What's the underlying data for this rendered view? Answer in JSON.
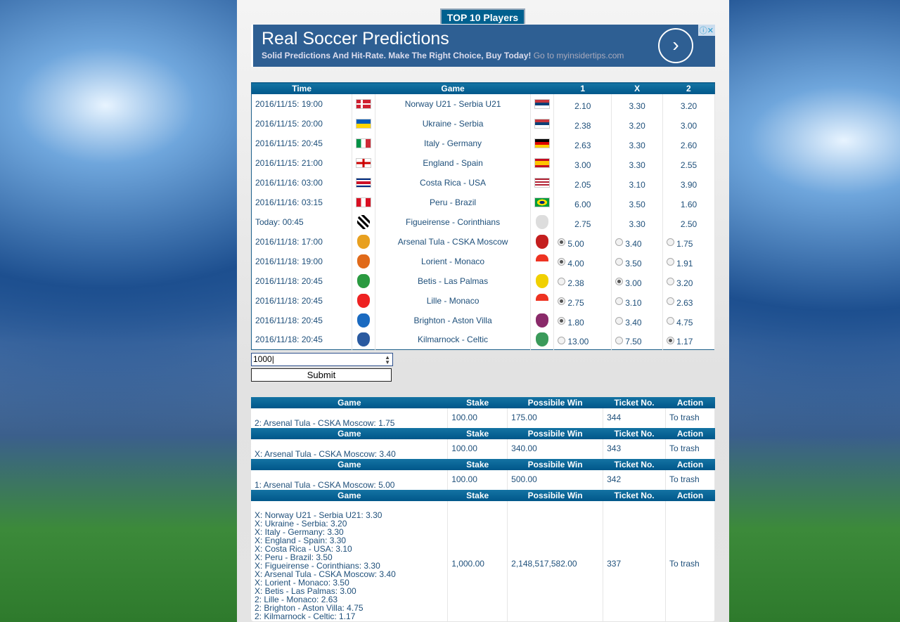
{
  "top_button": "TOP 10 Players",
  "ad": {
    "title": "Real Soccer Predictions",
    "subtitle": "Solid Predictions And Hit-Rate. Make The Right Choice, Buy Today!",
    "link": "Go to myinsidertips.com",
    "info_icon": "ⓘ",
    "close_icon": "✕",
    "arrow": "›"
  },
  "odds_table": {
    "headers": [
      "Time",
      "",
      "Game",
      "",
      "1",
      "X",
      "2"
    ],
    "rows": [
      {
        "time": "2016/11/15: 19:00",
        "game": "Norway U21 - Serbia U21",
        "color": "red",
        "o1": "2.10",
        "ox": "3.30",
        "o2": "3.20",
        "f1": "norway-flag",
        "f2": "serbia-flag"
      },
      {
        "time": "2016/11/15: 20:00",
        "game": "Ukraine - Serbia",
        "color": "red",
        "o1": "2.38",
        "ox": "3.20",
        "o2": "3.00",
        "f1": "ukraine-flag",
        "f2": "serbia-flag"
      },
      {
        "time": "2016/11/15: 20:45",
        "game": "Italy - Germany",
        "color": "red",
        "o1": "2.63",
        "ox": "3.30",
        "o2": "2.60",
        "f1": "italy-flag",
        "f2": "germany-flag"
      },
      {
        "time": "2016/11/15: 21:00",
        "game": "England - Spain",
        "color": "red",
        "o1": "3.00",
        "ox": "3.30",
        "o2": "2.55",
        "f1": "england-flag",
        "f2": "spain-flag"
      },
      {
        "time": "2016/11/16: 03:00",
        "game": "Costa Rica - USA",
        "color": "red",
        "o1": "2.05",
        "ox": "3.10",
        "o2": "3.90",
        "f1": "costa-rica-flag",
        "f2": "usa-flag"
      },
      {
        "time": "2016/11/16: 03:15",
        "game": "Peru - Brazil",
        "color": "red",
        "o1": "6.00",
        "ox": "3.50",
        "o2": "1.60",
        "f1": "peru-flag",
        "f2": "brazil-flag"
      },
      {
        "time": "Today: 00:45",
        "game": "Figueirense - Corinthians",
        "color": "red",
        "o1": "2.75",
        "ox": "3.30",
        "o2": "2.50",
        "f1": "figueirense-badge",
        "f2": "corinthians-badge"
      },
      {
        "time": "2016/11/18: 17:00",
        "game": "Arsenal Tula - CSKA Moscow",
        "color": "green",
        "o1": "5.00",
        "ox": "3.40",
        "o2": "1.75",
        "sel": "1",
        "f1": "arsenal-tula-badge",
        "f2": "cska-badge"
      },
      {
        "time": "2016/11/18: 19:00",
        "game": "Lorient - Monaco",
        "color": "green",
        "o1": "4.00",
        "ox": "3.50",
        "o2": "1.91",
        "sel": "1",
        "f1": "lorient-badge",
        "f2": "monaco-badge"
      },
      {
        "time": "2016/11/18: 20:45",
        "game": "Betis - Las Palmas",
        "color": "green",
        "o1": "2.38",
        "ox": "3.00",
        "o2": "3.20",
        "sel": "X",
        "f1": "betis-badge",
        "f2": "las-palmas-badge"
      },
      {
        "time": "2016/11/18: 20:45",
        "game": "Lille - Monaco",
        "color": "green",
        "o1": "2.75",
        "ox": "3.10",
        "o2": "2.63",
        "sel": "1",
        "f1": "lille-badge",
        "f2": "monaco-badge"
      },
      {
        "time": "2016/11/18: 20:45",
        "game": "Brighton - Aston Villa",
        "color": "green",
        "o1": "1.80",
        "ox": "3.40",
        "o2": "4.75",
        "sel": "1",
        "f1": "brighton-badge",
        "f2": "aston-villa-badge"
      },
      {
        "time": "2016/11/18: 20:45",
        "game": "Kilmarnock - Celtic",
        "color": "green",
        "o1": "13.00",
        "ox": "7.50",
        "o2": "1.17",
        "sel": "2",
        "f1": "kilmarnock-badge",
        "f2": "celtic-badge"
      }
    ]
  },
  "stake_input": "1000",
  "submit_label": "Submit",
  "tickets": {
    "headers": [
      "Game",
      "Stake",
      "Possibile Win",
      "Ticket No.",
      "Action"
    ],
    "items": [
      {
        "games": [
          "2: Arsenal Tula - CSKA Moscow: 1.75"
        ],
        "stake": "100.00",
        "win": "175.00",
        "no": "344",
        "action": "To trash"
      },
      {
        "games": [
          "X: Arsenal Tula - CSKA Moscow: 3.40"
        ],
        "stake": "100.00",
        "win": "340.00",
        "no": "343",
        "action": "To trash"
      },
      {
        "games": [
          "1: Arsenal Tula - CSKA Moscow: 5.00"
        ],
        "stake": "100.00",
        "win": "500.00",
        "no": "342",
        "action": "To trash"
      },
      {
        "games": [
          "X: Norway U21 - Serbia U21: 3.30",
          "X: Ukraine - Serbia: 3.20",
          "X: Italy - Germany: 3.30",
          "X: England - Spain: 3.30",
          "X: Costa Rica - USA: 3.10",
          "X: Peru - Brazil: 3.50",
          "X: Figueirense - Corinthians: 3.30",
          "X: Arsenal Tula - CSKA Moscow: 3.40",
          "X: Lorient - Monaco: 3.50",
          "X: Betis - Las Palmas: 3.00",
          "2: Lille - Monaco: 2.63",
          "2: Brighton - Aston Villa: 4.75",
          "2: Kilmarnock - Celtic: 1.17"
        ],
        "stake": "1,000.00",
        "win": "2,148,517,582.00",
        "no": "337",
        "action": "To trash"
      }
    ]
  },
  "colors": {
    "header": "#00608f",
    "red_game": "#d0202a",
    "green_game": "#2d7a2a"
  }
}
